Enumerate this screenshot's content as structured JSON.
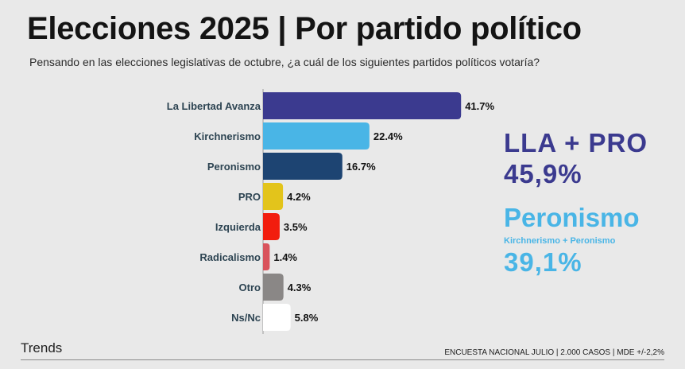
{
  "header": {
    "title": "Elecciones 2025 | Por partido político",
    "subtitle": "Pensando en las elecciones legislativas de octubre, ¿a cuál de los siguientes partidos políticos votaría?"
  },
  "chart_data": {
    "type": "bar",
    "orientation": "horizontal",
    "categories": [
      "La Libertad Avanza",
      "Kirchnerismo",
      "Peronismo",
      "PRO",
      "Izquierda",
      "Radicalismo",
      "Otro",
      "Ns/Nc"
    ],
    "values": [
      41.7,
      22.4,
      16.7,
      4.2,
      3.5,
      1.4,
      4.3,
      5.8
    ],
    "value_labels": [
      "41.7%",
      "22.4%",
      "16.7%",
      "4.2%",
      "3.5%",
      "1.4%",
      "4.3%",
      "5.8%"
    ],
    "colors": [
      "#3b3a8f",
      "#49b5e6",
      "#1d4472",
      "#e3c41b",
      "#f21d0e",
      "#d9535c",
      "#8a8786",
      "#ffffff"
    ],
    "xlim": [
      0,
      42
    ]
  },
  "highlights": {
    "lla_title": "LLA + PRO",
    "lla_value": "45,9%",
    "peronismo_title": "Peronismo",
    "peronismo_sub": "Kirchnerismo + Peronismo",
    "peronismo_value": "39,1%"
  },
  "footer": {
    "brand": "Trends",
    "note": "ENCUESTA NACIONAL JULIO | 2.000 CASOS | MDE +/-2,2%"
  }
}
